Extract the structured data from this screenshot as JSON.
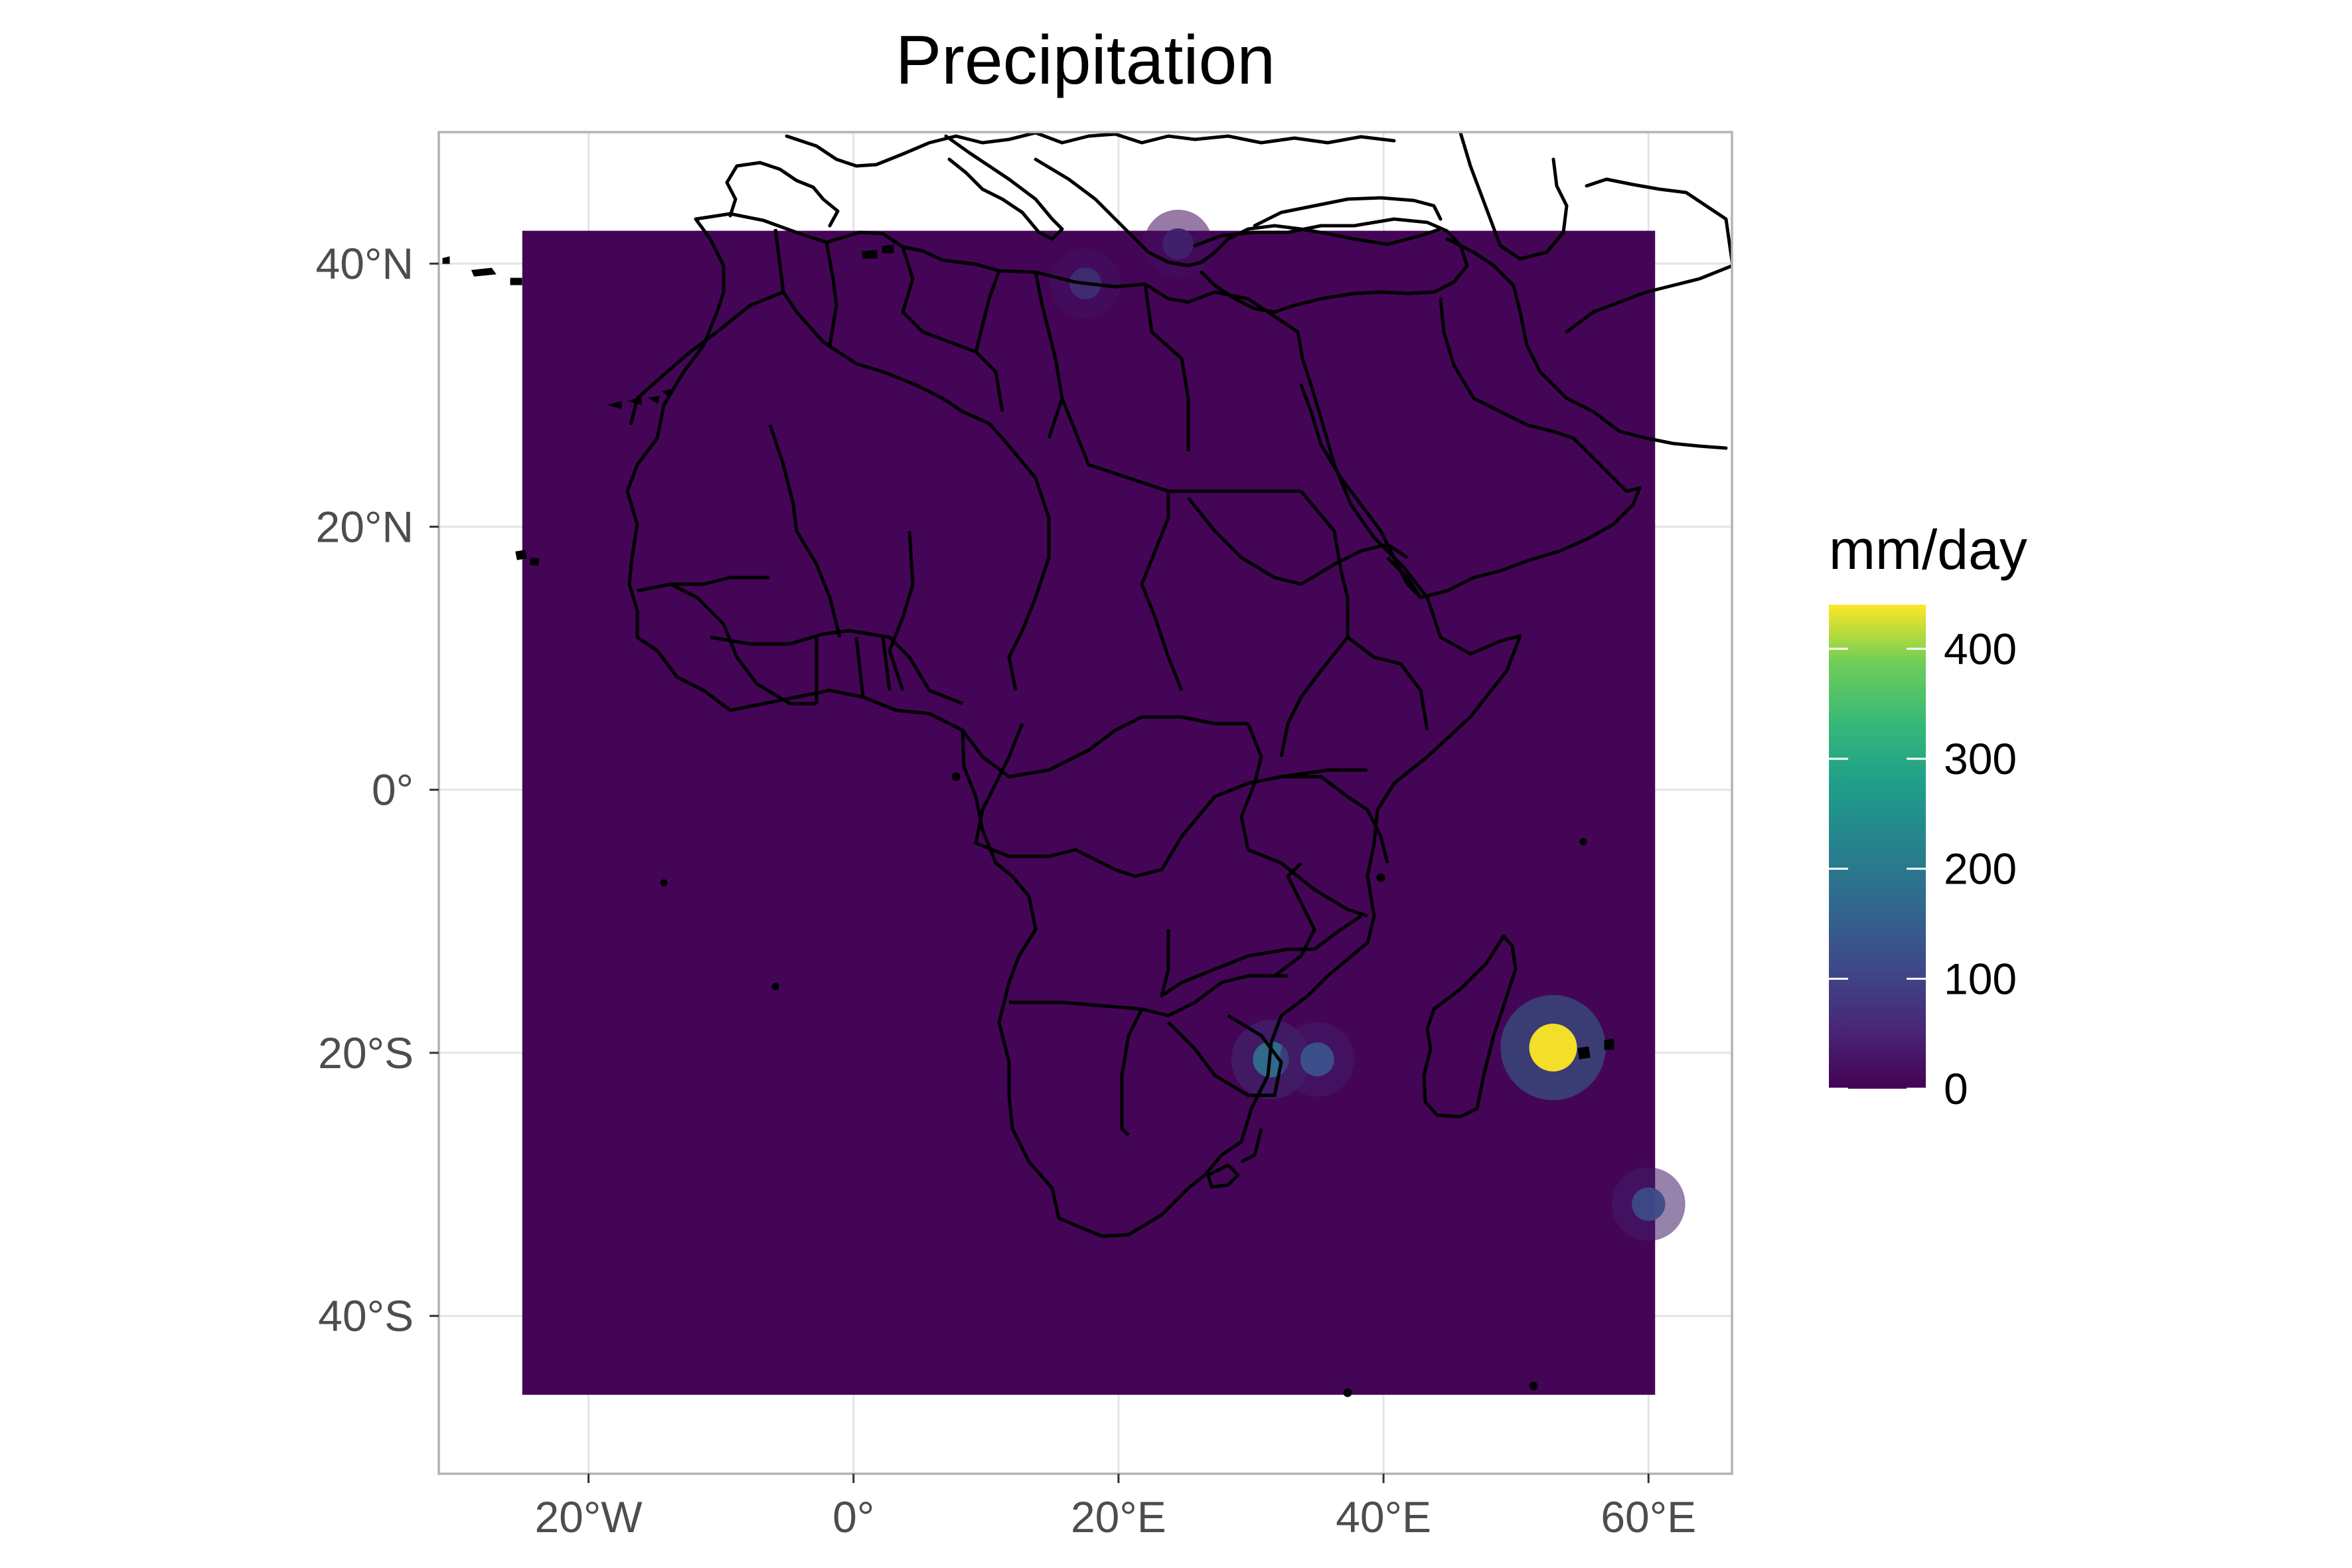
{
  "chart": {
    "title": "Precipitation",
    "x_ticks": [
      {
        "lon": -20,
        "label": "20°W"
      },
      {
        "lon": 0,
        "label": "0°"
      },
      {
        "lon": 20,
        "label": "20°E"
      },
      {
        "lon": 40,
        "label": "40°E"
      },
      {
        "lon": 60,
        "label": "60°E"
      }
    ],
    "y_ticks": [
      {
        "lat": 40,
        "label": "40°N"
      },
      {
        "lat": 20,
        "label": "20°N"
      },
      {
        "lat": 0,
        "label": "0°"
      },
      {
        "lat": -20,
        "label": "20°S"
      },
      {
        "lat": -40,
        "label": "40°S"
      }
    ],
    "legend": {
      "title": "mm/day",
      "ticks": [
        {
          "value": 400,
          "label": "400"
        },
        {
          "value": 300,
          "label": "300"
        },
        {
          "value": 200,
          "label": "200"
        },
        {
          "value": 100,
          "label": "100"
        },
        {
          "value": 0,
          "label": "0"
        }
      ],
      "colormap": "viridis",
      "colors": [
        "#440154",
        "#3b528b",
        "#21908c",
        "#5dc963",
        "#fde725"
      ]
    }
  },
  "chart_data": {
    "type": "heatmap",
    "title": "Precipitation",
    "xlim": [
      -31.3,
      66.3
    ],
    "ylim": [
      -52,
      50
    ],
    "raster_extent": {
      "lon": [
        -25,
        60.5
      ],
      "lat": [
        -46,
        42.5
      ]
    },
    "value_range": [
      0,
      440
    ],
    "background_value": 5,
    "hotspots": [
      {
        "lon": 52.8,
        "lat": -19.6,
        "value": 440
      },
      {
        "lon": 31.5,
        "lat": -20.5,
        "value": 160
      },
      {
        "lon": 35.0,
        "lat": -20.5,
        "value": 110
      },
      {
        "lon": 17.5,
        "lat": 38.5,
        "value": 60
      },
      {
        "lon": 60.0,
        "lat": -31.5,
        "value": 100
      },
      {
        "lon": 24.5,
        "lat": 41.5,
        "value": 45
      }
    ]
  }
}
